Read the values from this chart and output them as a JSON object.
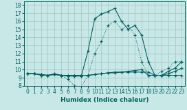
{
  "xlabel": "Humidex (Indice chaleur)",
  "xlim": [
    -0.5,
    23.5
  ],
  "ylim": [
    8,
    18.5
  ],
  "yticks": [
    8,
    9,
    10,
    11,
    12,
    13,
    14,
    15,
    16,
    17,
    18
  ],
  "xticks": [
    0,
    1,
    2,
    3,
    4,
    5,
    6,
    7,
    8,
    9,
    10,
    11,
    12,
    13,
    14,
    15,
    16,
    17,
    18,
    19,
    20,
    21,
    22,
    23
  ],
  "bg_color": "#c8e8e8",
  "grid_color": "#a8c8c8",
  "line_color": "#006060",
  "line1_x": [
    0,
    1,
    2,
    3,
    4,
    5,
    6,
    7,
    8,
    9,
    10,
    11,
    12,
    13,
    14,
    15,
    16,
    17,
    18,
    19,
    20,
    21,
    22,
    23
  ],
  "line1_y": [
    9.5,
    9.5,
    9.3,
    9.3,
    9.4,
    9.3,
    8.8,
    8.0,
    7.85,
    9.3,
    12.0,
    13.5,
    15.5,
    16.0,
    15.0,
    15.5,
    14.3,
    11.0,
    9.3,
    9.3,
    9.8,
    10.2,
    11.0,
    11.0
  ],
  "line2_x": [
    0,
    1,
    2,
    3,
    4,
    5,
    6,
    7,
    8,
    9,
    10,
    11,
    12,
    13,
    14,
    15,
    16,
    17,
    18,
    19,
    20,
    21,
    22,
    23
  ],
  "line2_y": [
    9.5,
    9.5,
    9.3,
    9.3,
    9.4,
    9.3,
    9.2,
    9.2,
    9.2,
    12.3,
    16.3,
    16.9,
    17.2,
    17.6,
    16.0,
    15.0,
    15.5,
    14.3,
    11.0,
    9.3,
    9.3,
    9.8,
    10.2,
    11.0
  ],
  "line3_x": [
    0,
    1,
    2,
    3,
    4,
    5,
    6,
    7,
    8,
    9,
    10,
    11,
    12,
    13,
    14,
    15,
    16,
    17,
    18,
    19,
    20,
    21,
    22,
    23
  ],
  "line3_y": [
    9.5,
    9.5,
    9.4,
    9.3,
    9.4,
    9.3,
    9.3,
    9.3,
    9.3,
    9.3,
    9.4,
    9.5,
    9.6,
    9.7,
    9.7,
    9.8,
    9.9,
    10.0,
    9.3,
    9.3,
    9.3,
    9.5,
    9.8,
    10.2
  ],
  "line4_x": [
    0,
    1,
    2,
    3,
    4,
    5,
    6,
    7,
    8,
    9,
    10,
    11,
    12,
    13,
    14,
    15,
    16,
    17,
    18,
    19,
    20,
    21,
    22,
    23
  ],
  "line4_y": [
    9.5,
    9.5,
    9.4,
    9.3,
    9.5,
    9.3,
    9.3,
    9.3,
    9.3,
    9.3,
    9.4,
    9.5,
    9.6,
    9.6,
    9.7,
    9.7,
    9.7,
    9.7,
    9.7,
    9.3,
    9.3,
    9.3,
    9.3,
    9.3
  ]
}
